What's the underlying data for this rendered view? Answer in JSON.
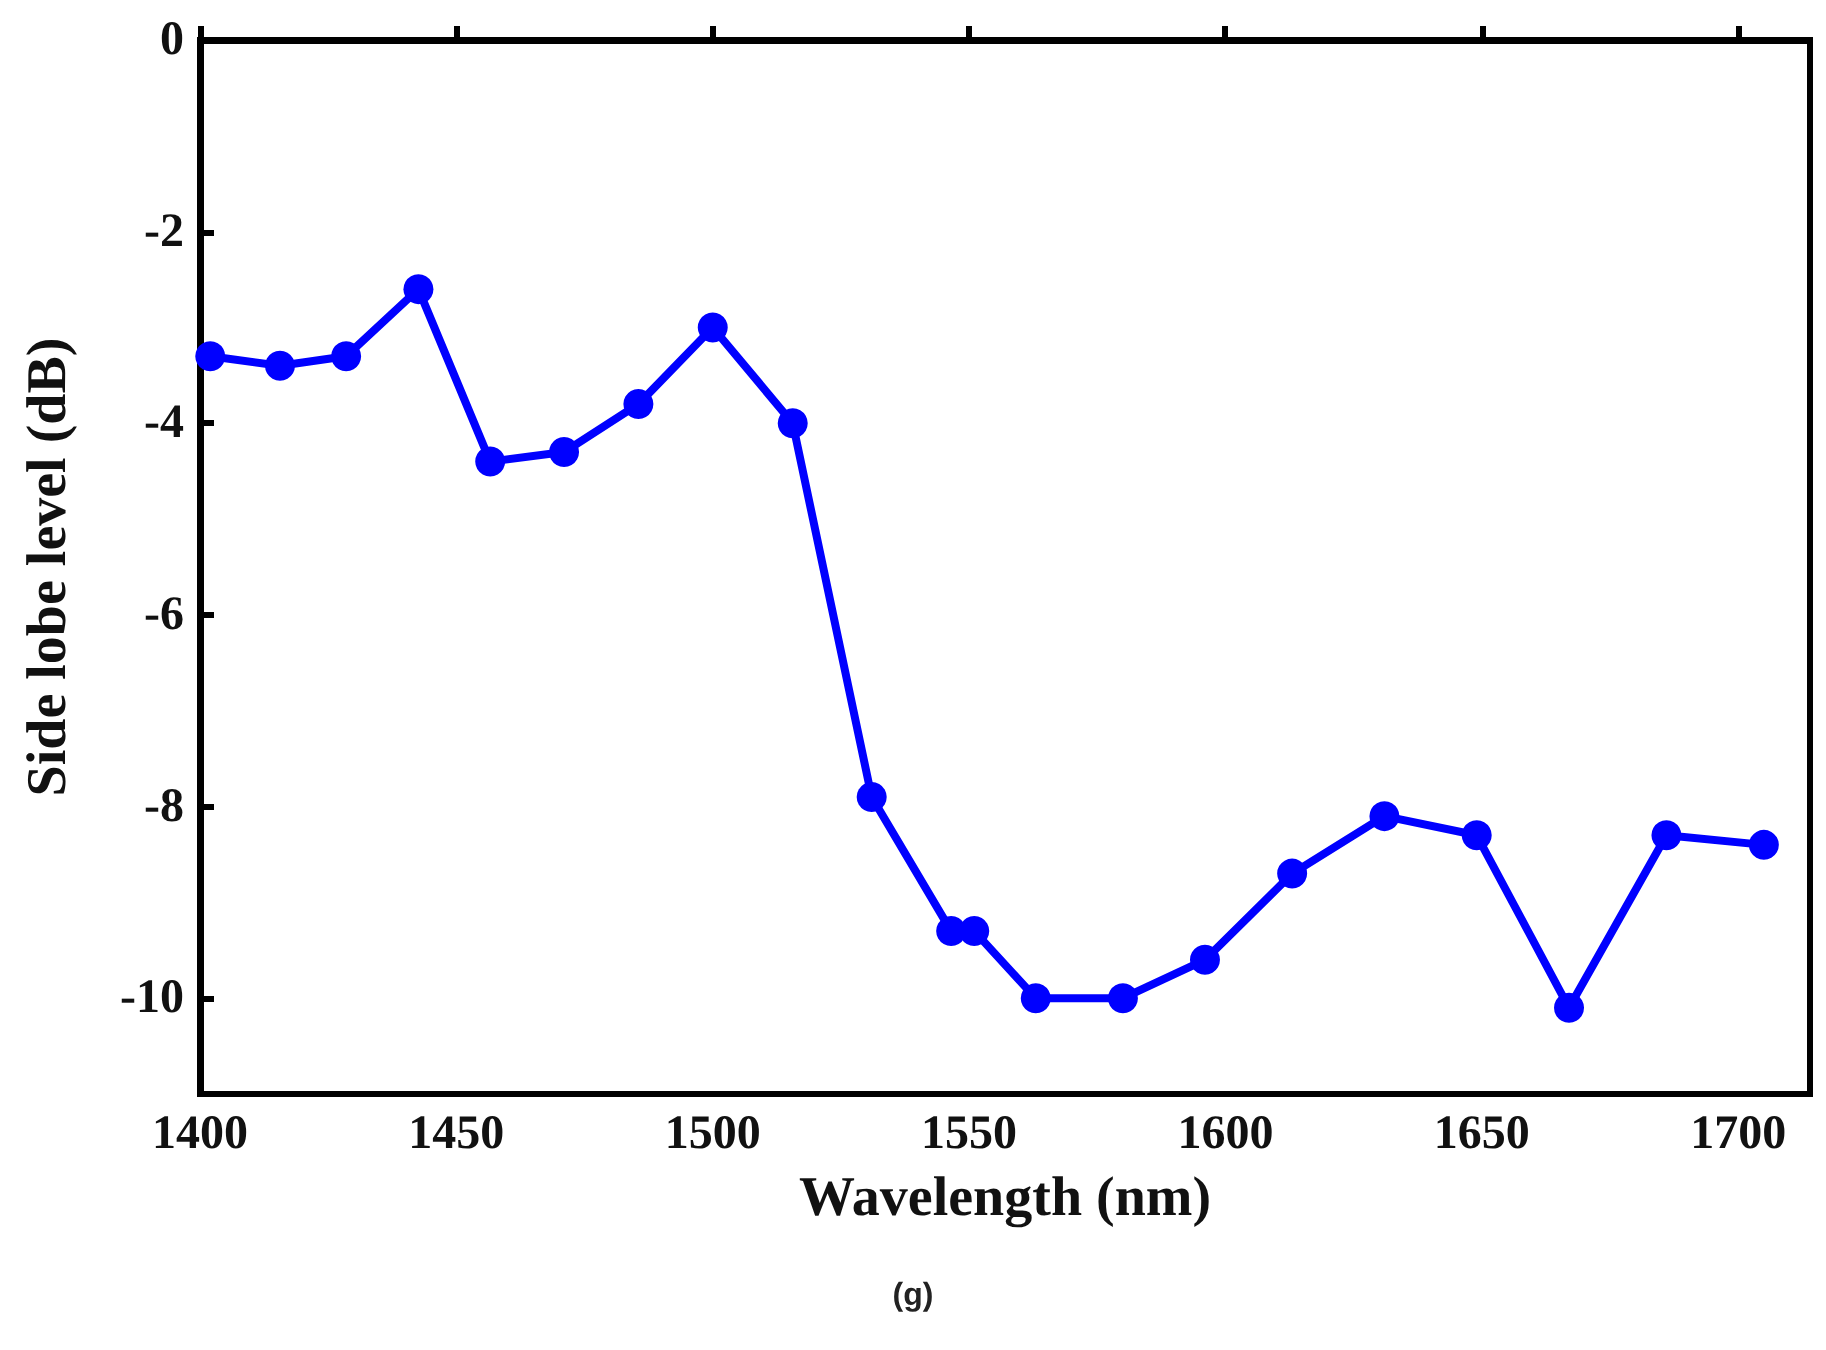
{
  "chart_data": {
    "type": "line",
    "xlabel": "Wavelength (nm)",
    "ylabel": "Side lobe level (dB)",
    "x": [
      1402,
      1415.6,
      1428.5,
      1442.6,
      1456.6,
      1471,
      1485.5,
      1500,
      1515.6,
      1531,
      1546.5,
      1551,
      1563,
      1580,
      1596,
      1613,
      1631,
      1649,
      1667,
      1686,
      1705
    ],
    "series": [
      {
        "color": "#0000ff",
        "values": [
          -3.3,
          -3.4,
          -3.3,
          -2.6,
          -4.4,
          -4.3,
          -3.8,
          -3.0,
          -4.0,
          -7.9,
          -9.3,
          -9.3,
          -10.0,
          -10.0,
          -9.6,
          -8.7,
          -8.1,
          -8.3,
          -10.1,
          -8.3,
          -8.4
        ]
      }
    ],
    "xlim": [
      1400,
      1714
    ],
    "xticks": [
      1400,
      1450,
      1500,
      1550,
      1600,
      1650,
      1700
    ],
    "ylim": [
      -11,
      0
    ],
    "yticks": [
      -10,
      -8,
      -6,
      -4,
      -2,
      0
    ],
    "grid": false,
    "marker": "circle",
    "line_style": "solid",
    "annotations": [
      "(g)"
    ]
  }
}
